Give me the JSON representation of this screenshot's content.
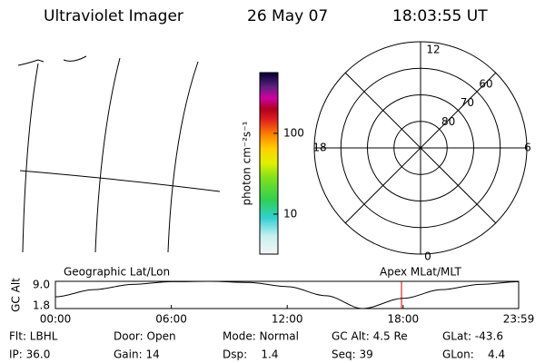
{
  "header": {
    "title": "Ultraviolet Imager",
    "date": "26 May 07",
    "time": "18:03:55 UT"
  },
  "colorbar": {
    "label": "photon cm⁻²s⁻¹",
    "scale": "log",
    "lim": [
      3.2,
      565
    ],
    "ticks": [
      100,
      10
    ]
  },
  "polar": {
    "mlt_labels": [
      "12",
      "18",
      "6",
      "0"
    ],
    "lat_rings": [
      60,
      70,
      80
    ]
  },
  "altitude": {
    "type": "line",
    "ylabel": "GC Alt",
    "left_title": "Geographic Lat/Lon",
    "right_title": "Apex MLat/MLT",
    "x": [
      0,
      2,
      4,
      6,
      8,
      10,
      12,
      14,
      15.9,
      18,
      20,
      22,
      23.98
    ],
    "values": [
      4.9,
      6.8,
      8.2,
      8.9,
      9.0,
      8.7,
      7.6,
      5.2,
      1.8,
      4.5,
      6.8,
      8.2,
      8.9
    ],
    "color": "#000000",
    "marker_color": "#cc0000",
    "xlim": [
      0,
      23.98
    ],
    "ylim": [
      1.8,
      9.0
    ],
    "xticks": [
      {
        "value": 0,
        "label": "00:00"
      },
      {
        "value": 6,
        "label": "06:00"
      },
      {
        "value": 12,
        "label": "12:00"
      },
      {
        "value": 18,
        "label": "18:00"
      },
      {
        "value": 23.98,
        "label": "23:59"
      }
    ],
    "yticks": [
      {
        "value": 9.0,
        "label": "9.0"
      },
      {
        "value": 1.8,
        "label": "1.8"
      }
    ]
  },
  "status": [
    [
      "Flt: LBHL",
      "Door: Open",
      "Mode: Normal",
      "GC Alt: 4.5 Re",
      "GLat: -43.6"
    ],
    [
      "IP: 36.0",
      "Gain: 14",
      "Dsp:    1.4",
      "Seq: 39",
      "GLon:    4.4"
    ]
  ]
}
